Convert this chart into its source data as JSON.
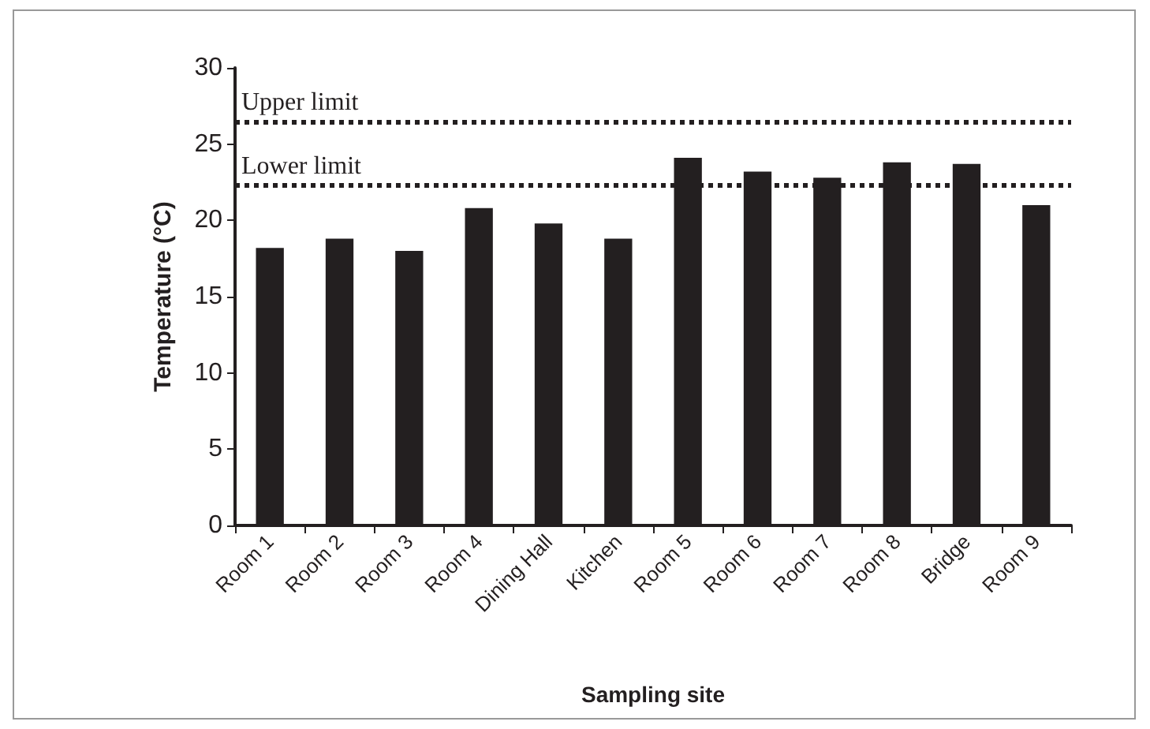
{
  "chart_data": {
    "type": "bar",
    "xlabel": "Sampling site",
    "ylabel": "Temperature (°C)",
    "categories": [
      "Room 1",
      "Room 2",
      "Room 3",
      "Room 4",
      "Dining Hall",
      "Kitchen",
      "Room 5",
      "Room 6",
      "Room 7",
      "Room 8",
      "Bridge",
      "Room 9"
    ],
    "values": [
      18.2,
      18.8,
      18.0,
      20.8,
      19.8,
      18.8,
      24.1,
      23.2,
      22.8,
      23.8,
      23.7,
      21.0
    ],
    "color": "#231f20",
    "ylim": [
      0,
      30
    ],
    "yticks": [
      0,
      5,
      10,
      15,
      20,
      25,
      30
    ],
    "grid": false,
    "ref_lines": [
      {
        "axis": "y",
        "value": 26.5,
        "label": "Upper limit",
        "color": "#231f20",
        "line_style": "dotted"
      },
      {
        "axis": "y",
        "value": 22.3,
        "label": "Lower limit",
        "color": "#231f20",
        "line_style": "dotted"
      }
    ]
  }
}
